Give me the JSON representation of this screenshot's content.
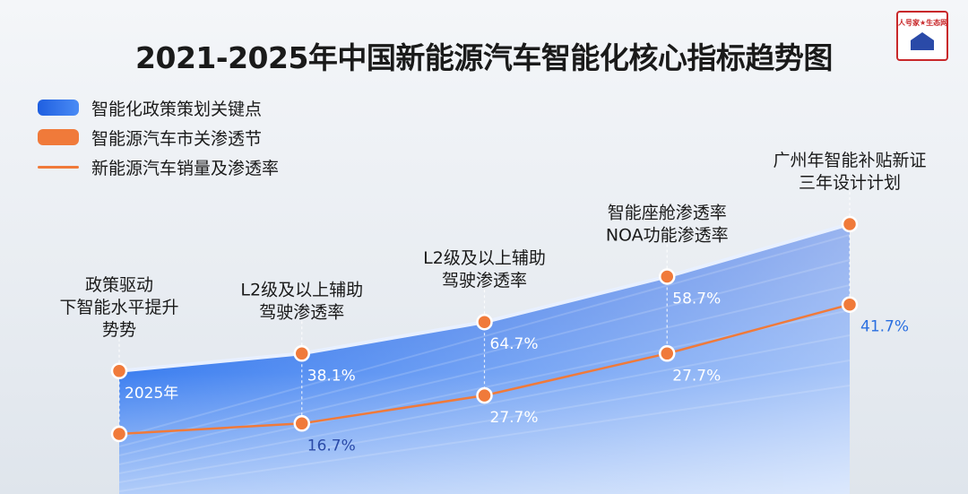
{
  "title": "2021-2025年中国新能源汽车智能化核心指标趋势图",
  "logo": {
    "text": "人号家★生态网"
  },
  "legend": [
    {
      "label": "智能化政策策划关键点",
      "color": "#2f6fe8",
      "kind": "area"
    },
    {
      "label": "智能源汽车市关渗透节",
      "color": "#f07a3a",
      "kind": "bar"
    },
    {
      "label": "新能源汽车销量及渗透率",
      "color": "#f07a3a",
      "kind": "line"
    }
  ],
  "chart_data": {
    "type": "area",
    "x": [
      "",
      "",
      "",
      "",
      ""
    ],
    "series": [
      {
        "name": "智能化政策策划关键点",
        "kind": "area",
        "color": "#2f6fe8",
        "values": [
          38,
          43,
          52,
          65,
          80
        ]
      },
      {
        "name": "新能源汽车销量及渗透率",
        "kind": "line",
        "color": "#f07a3a",
        "values": [
          20,
          23,
          31,
          43,
          57
        ]
      }
    ],
    "annotations": [
      {
        "index": 0,
        "lines": [
          "政策驱动",
          "下智能水平提升",
          "势势"
        ]
      },
      {
        "index": 1,
        "lines": [
          "L2级及以上辅助",
          "驾驶渗透率"
        ]
      },
      {
        "index": 2,
        "lines": [
          "L2级及以上辅助",
          "驾驶渗透率"
        ]
      },
      {
        "index": 3,
        "lines": [
          "智能座舱渗透率",
          "NOA功能渗透率"
        ]
      },
      {
        "index": 4,
        "lines": [
          "广州年智能补贴新证",
          "三年设计计划"
        ]
      }
    ],
    "value_labels": [
      {
        "index": 0,
        "text": "2025年",
        "color": "#ffffff",
        "ref": "area",
        "offset": 1
      },
      {
        "index": 1,
        "text": "38.1%",
        "color": "#ffffff",
        "ref": "area",
        "offset": 1
      },
      {
        "index": 1,
        "text": "16.7%",
        "color": "#2a4aa8",
        "ref": "line",
        "offset": 1
      },
      {
        "index": 2,
        "text": "64.7%",
        "color": "#ffffff",
        "ref": "area",
        "offset": 1
      },
      {
        "index": 2,
        "text": "27.7%",
        "color": "#ffffff",
        "ref": "line",
        "offset": 1
      },
      {
        "index": 3,
        "text": "58.7%",
        "color": "#ffffff",
        "ref": "area",
        "offset": 1
      },
      {
        "index": 3,
        "text": "27.7%",
        "color": "#ffffff",
        "ref": "line",
        "offset": 1
      },
      {
        "index": 4,
        "text": "41.7%",
        "color": "#2a6fe0",
        "ref": "line",
        "offset": 1
      }
    ],
    "ylim": [
      0,
      100
    ],
    "grid": false,
    "legend_position": "top-left"
  }
}
